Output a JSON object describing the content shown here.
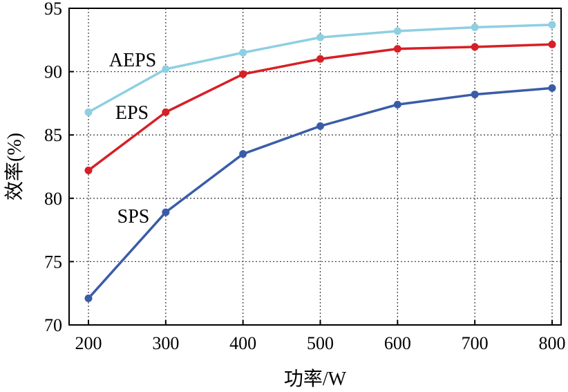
{
  "chart_data": {
    "type": "line",
    "title": "",
    "xlabel": "功率/W",
    "ylabel": "效率(%)",
    "x": [
      200,
      300,
      400,
      500,
      600,
      700,
      800
    ],
    "xlim": [
      200,
      800
    ],
    "ylim": [
      70,
      95
    ],
    "xticks": [
      "200",
      "300",
      "400",
      "500",
      "600",
      "700",
      "800"
    ],
    "yticks": [
      "70",
      "75",
      "80",
      "85",
      "90",
      "95"
    ],
    "grid": true,
    "legend": "inline labels",
    "series": [
      {
        "name": "AEPS",
        "color": "#8ecfe2",
        "values": [
          86.8,
          90.2,
          91.5,
          92.7,
          93.2,
          93.5,
          93.7
        ]
      },
      {
        "name": "EPS",
        "color": "#d71f26",
        "values": [
          82.2,
          86.8,
          89.8,
          91.0,
          91.8,
          91.95,
          92.15
        ]
      },
      {
        "name": "SPS",
        "color": "#3a5ca8",
        "values": [
          72.1,
          78.9,
          83.5,
          85.7,
          87.4,
          88.2,
          88.7
        ]
      }
    ]
  }
}
